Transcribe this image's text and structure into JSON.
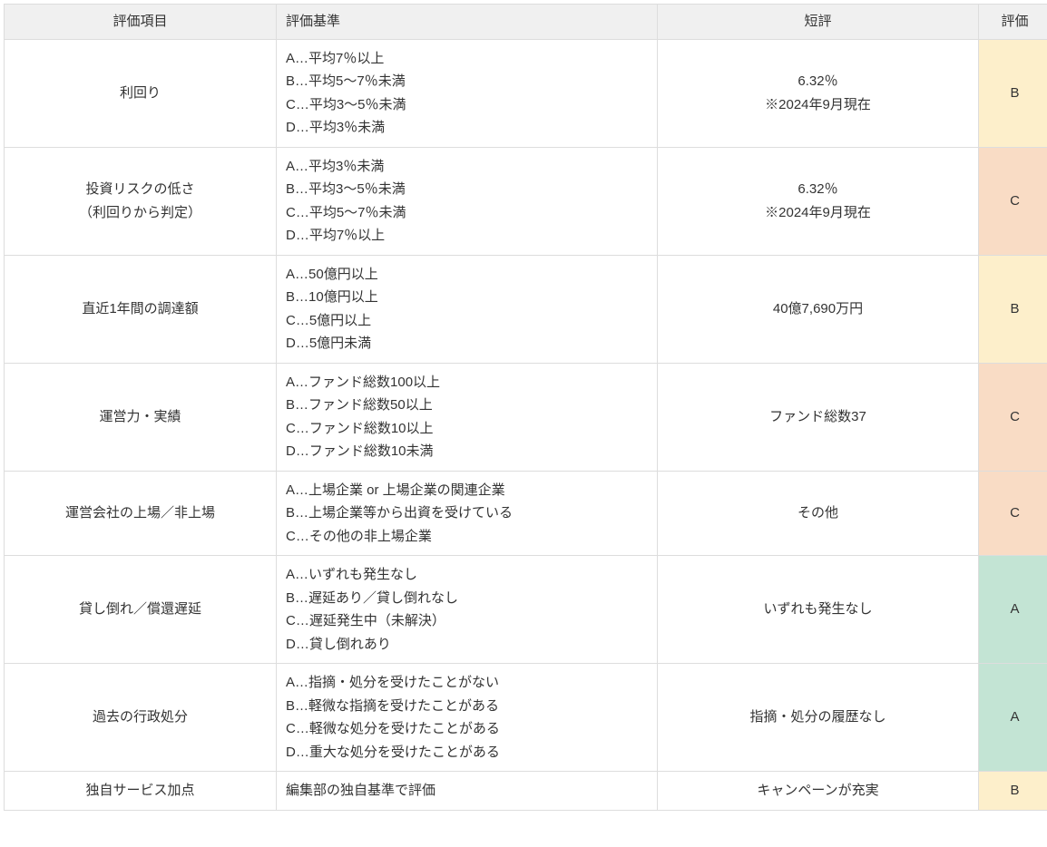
{
  "table": {
    "headers": {
      "item": "評価項目",
      "criteria": "評価基準",
      "review": "短評",
      "grade": "評価"
    },
    "grade_colors": {
      "A": "#c3e4d4",
      "B": "#fdefcb",
      "C": "#f9dcc5",
      "D": "#f5c4c4"
    },
    "rows": [
      {
        "item": "利回り",
        "criteria": [
          "A…平均7％以上",
          "B…平均5〜7％未満",
          "C…平均3〜5％未満",
          "D…平均3％未満"
        ],
        "review": [
          "6.32％",
          "※2024年9月現在"
        ],
        "grade": "B"
      },
      {
        "item": "投資リスクの低さ\n（利回りから判定）",
        "criteria": [
          "A…平均3％未満",
          "B…平均3〜5％未満",
          "C…平均5〜7％未満",
          "D…平均7％以上"
        ],
        "review": [
          "6.32％",
          "※2024年9月現在"
        ],
        "grade": "C"
      },
      {
        "item": "直近1年間の調達額",
        "criteria": [
          "A…50億円以上",
          "B…10億円以上",
          "C…5億円以上",
          "D…5億円未満"
        ],
        "review": [
          "40億7,690万円"
        ],
        "grade": "B"
      },
      {
        "item": "運営力・実績",
        "criteria": [
          "A…ファンド総数100以上",
          "B…ファンド総数50以上",
          "C…ファンド総数10以上",
          "D…ファンド総数10未満"
        ],
        "review": [
          "ファンド総数37"
        ],
        "grade": "C"
      },
      {
        "item": "運営会社の上場／非上場",
        "criteria": [
          "A…上場企業 or 上場企業の関連企業",
          "B…上場企業等から出資を受けている",
          "C…その他の非上場企業"
        ],
        "review": [
          "その他"
        ],
        "grade": "C"
      },
      {
        "item": "貸し倒れ／償還遅延",
        "criteria": [
          "A…いずれも発生なし",
          "B…遅延あり／貸し倒れなし",
          "C…遅延発生中（未解決）",
          "D…貸し倒れあり"
        ],
        "review": [
          "いずれも発生なし"
        ],
        "grade": "A"
      },
      {
        "item": "過去の行政処分",
        "criteria": [
          "A…指摘・処分を受けたことがない",
          "B…軽微な指摘を受けたことがある",
          "C…軽微な処分を受けたことがある",
          "D…重大な処分を受けたことがある"
        ],
        "review": [
          "指摘・処分の履歴なし"
        ],
        "grade": "A"
      },
      {
        "item": "独自サービス加点",
        "criteria": [
          "編集部の独自基準で評価"
        ],
        "review": [
          "キャンペーンが充実"
        ],
        "grade": "B"
      }
    ]
  }
}
